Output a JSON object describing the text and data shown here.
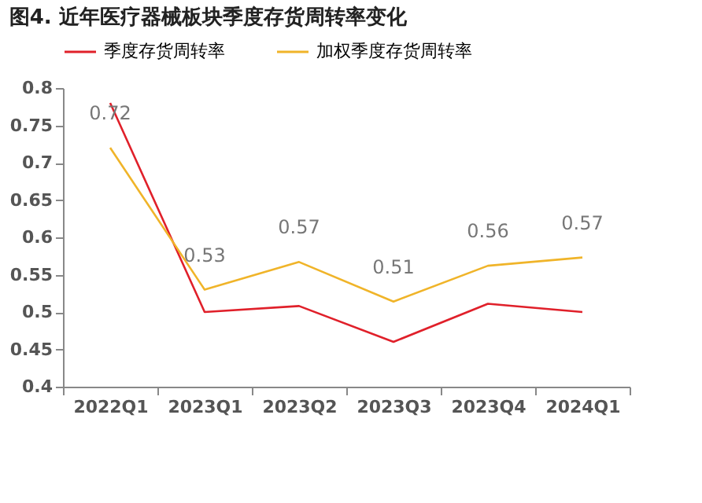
{
  "chart_data": {
    "type": "line",
    "title": "图4. 近年医疗器械板块季度存货周转率变化",
    "categories": [
      "2022Q1",
      "2023Q1",
      "2023Q2",
      "2023Q3",
      "2023Q4",
      "2024Q1"
    ],
    "series": [
      {
        "name": "季度存货周转率",
        "color": "#e0202a",
        "values": [
          0.78,
          0.5,
          0.508,
          0.46,
          0.511,
          0.5
        ]
      },
      {
        "name": "加权季度存货周转率",
        "color": "#f0b429",
        "values": [
          0.72,
          0.53,
          0.567,
          0.514,
          0.562,
          0.573
        ],
        "value_labels": [
          "0.72",
          "0.53",
          "0.57",
          "0.51",
          "0.56",
          "0.57"
        ]
      }
    ],
    "ylim": [
      0.4,
      0.8
    ],
    "yticks": [
      0.4,
      0.45,
      0.5,
      0.55,
      0.6,
      0.65,
      0.7,
      0.75,
      0.8
    ],
    "grid": false,
    "legend": "top",
    "marker": "none",
    "line_style": "solid"
  }
}
